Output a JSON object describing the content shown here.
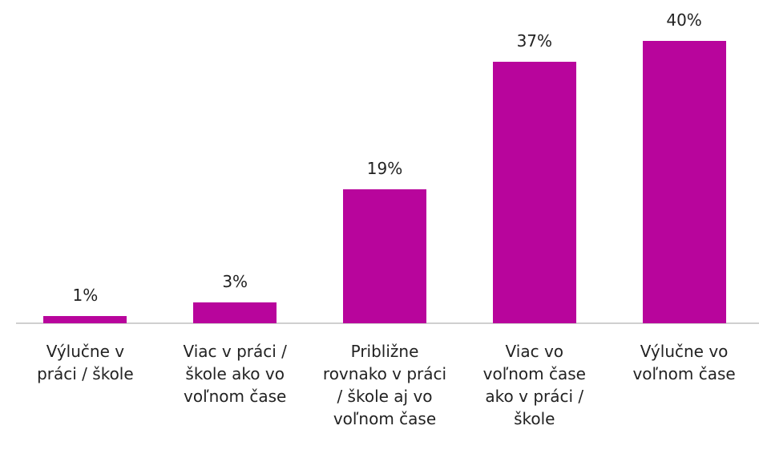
{
  "chart_data": {
    "type": "bar",
    "categories": [
      "Výlučne v\npráci / škole",
      "Viac v práci /\nškole ako vo\nvoľnom čase",
      "Približne\nrovnako v práci\n/ škole aj vo\nvoľnom čase",
      "Viac vo\nvoľnom čase\nako v práci /\nškole",
      "Výlučne vo\nvoľnom čase"
    ],
    "values": [
      1,
      3,
      19,
      37,
      40
    ],
    "value_labels": [
      "1%",
      "3%",
      "19%",
      "37%",
      "40%"
    ],
    "color": "#b8059c"
  }
}
